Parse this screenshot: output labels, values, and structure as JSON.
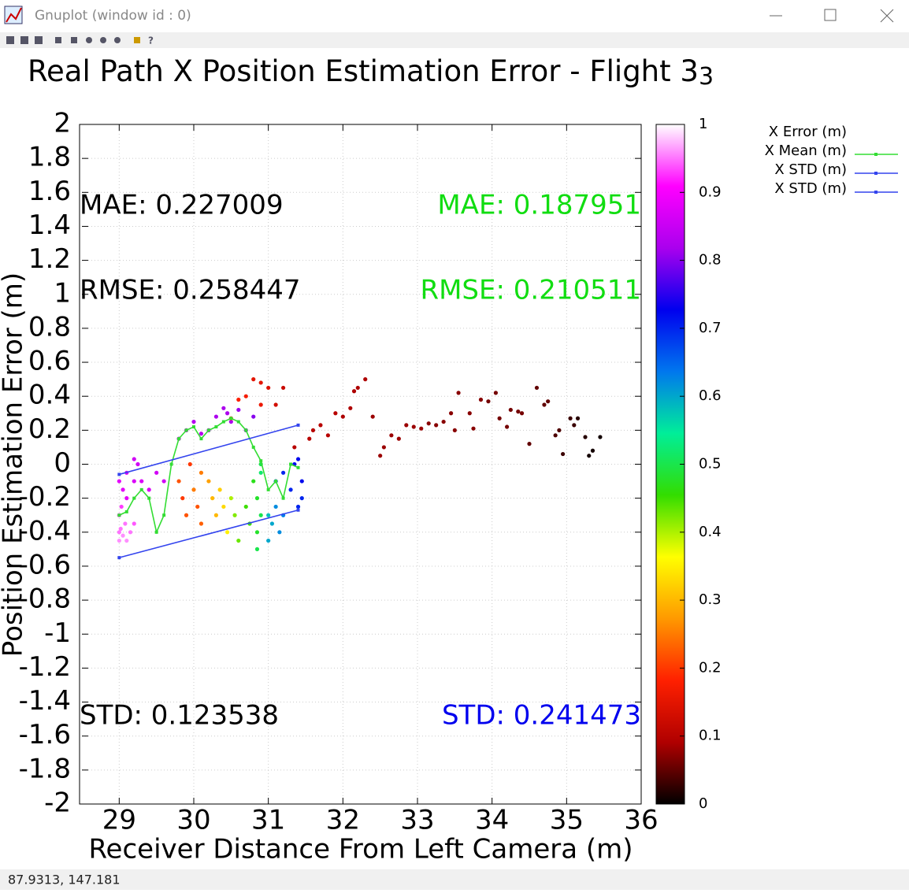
{
  "window": {
    "title": "Gnuplot (window id : 0)",
    "status": "87.9313,  147.181"
  },
  "chart_data": {
    "type": "scatter",
    "title": "Real Path X Position Estimation Error - Flight 3",
    "title_sub": "3",
    "xlabel": "Receiver Distance From Left Camera (m)",
    "ylabel": "Position Estimation Error (m)",
    "xlim": [
      28.5,
      36
    ],
    "xticks": [
      29,
      30,
      31,
      32,
      33,
      34,
      35,
      36
    ],
    "ylim": [
      -2,
      2
    ],
    "yticks": [
      2,
      1.8,
      1.6,
      1.4,
      1.2,
      1,
      0.8,
      0.6,
      0.4,
      0.2,
      0,
      -0.2,
      -0.4,
      -0.6,
      -0.8,
      -1,
      -1.2,
      -1.4,
      -1.6,
      -1.8,
      -2
    ],
    "grid": true,
    "legend": "outside-top-right",
    "cblim": [
      0,
      1
    ],
    "cbticks": [
      0,
      0.1,
      0.2,
      0.3,
      0.4,
      0.5,
      0.6,
      0.7,
      0.8,
      0.9,
      1
    ],
    "palette": [
      "#000000",
      "#b00000",
      "#ff2000",
      "#ff9900",
      "#ffff00",
      "#33dd00",
      "#00ee99",
      "#0077ee",
      "#0000ee",
      "#aa00ee",
      "#ff00ff",
      "#ffffff"
    ],
    "series": [
      {
        "name": "X Error (m)",
        "kind": "points",
        "x": [
          29.0,
          29.0,
          29.02,
          29.05,
          29.08,
          29.0,
          29.03,
          29.1,
          29.15,
          29.2,
          29.3,
          29.0,
          29.05,
          29.1,
          29.1,
          29.2,
          29.25,
          29.3,
          29.4,
          29.5,
          29.6,
          29.2,
          29.8,
          29.9,
          30.0,
          30.1,
          30.2,
          30.3,
          30.4,
          30.45,
          30.5,
          30.6,
          30.7,
          30.8,
          30.5,
          30.6,
          30.7,
          30.8,
          30.9,
          31.0,
          31.1,
          31.2,
          30.9,
          29.8,
          29.85,
          29.9,
          29.95,
          30.0,
          30.05,
          30.1,
          30.1,
          30.2,
          30.25,
          30.3,
          30.35,
          30.4,
          30.45,
          30.5,
          30.55,
          30.6,
          30.7,
          30.75,
          30.8,
          30.85,
          30.85,
          30.85,
          30.9,
          30.9,
          30.9,
          31.0,
          31.0,
          31.05,
          31.1,
          31.15,
          31.2,
          31.1,
          31.2,
          31.3,
          31.35,
          31.4,
          31.45,
          31.4,
          31.45,
          31.35,
          31.55,
          31.6,
          31.7,
          31.8,
          31.9,
          32.0,
          32.1,
          32.15,
          32.2,
          32.3,
          32.4,
          32.5,
          32.55,
          32.65,
          32.75,
          32.85,
          32.95,
          33.05,
          33.15,
          33.25,
          33.35,
          33.45,
          33.5,
          33.55,
          33.7,
          33.75,
          33.85,
          33.95,
          34.05,
          34.1,
          34.2,
          34.25,
          34.35,
          34.4,
          34.5,
          34.6,
          34.7,
          34.75,
          34.85,
          34.9,
          34.95,
          35.05,
          35.1,
          35.15,
          35.25,
          35.3,
          35.35,
          35.45
        ],
        "values": [
          -0.4,
          -0.45,
          -0.38,
          -0.42,
          -0.35,
          -0.3,
          -0.25,
          -0.45,
          -0.4,
          -0.35,
          -0.45,
          -0.1,
          -0.15,
          -0.05,
          -0.2,
          -0.1,
          0.0,
          -0.1,
          -0.15,
          -0.05,
          -0.1,
          0.03,
          0.15,
          0.2,
          0.25,
          0.18,
          0.2,
          0.28,
          0.33,
          0.3,
          0.25,
          0.32,
          0.2,
          0.28,
          0.27,
          0.38,
          0.4,
          0.5,
          0.48,
          0.45,
          0.35,
          0.45,
          0.35,
          -0.1,
          -0.2,
          -0.3,
          0.0,
          -0.15,
          -0.25,
          -0.05,
          -0.35,
          -0.1,
          -0.2,
          -0.3,
          -0.15,
          -0.25,
          -0.4,
          -0.2,
          -0.3,
          -0.45,
          -0.25,
          -0.35,
          -0.1,
          -0.2,
          -0.4,
          -0.5,
          -0.3,
          0.0,
          -0.05,
          -0.3,
          -0.45,
          -0.35,
          -0.25,
          -0.4,
          -0.3,
          -0.1,
          -0.05,
          -0.15,
          0.0,
          -0.25,
          -0.1,
          0.03,
          -0.2,
          0.1,
          0.15,
          0.2,
          0.23,
          0.17,
          0.3,
          0.28,
          0.33,
          0.43,
          0.45,
          0.5,
          0.28,
          0.05,
          0.1,
          0.17,
          0.15,
          0.23,
          0.22,
          0.21,
          0.24,
          0.23,
          0.25,
          0.3,
          0.2,
          0.42,
          0.3,
          0.21,
          0.38,
          0.37,
          0.42,
          0.27,
          0.22,
          0.32,
          0.31,
          0.3,
          0.12,
          0.45,
          0.35,
          0.37,
          0.17,
          0.2,
          0.06,
          0.27,
          0.23,
          0.27,
          0.16,
          0.05,
          0.08,
          0.16
        ],
        "z": [
          0.95,
          0.96,
          0.95,
          0.96,
          0.95,
          0.93,
          0.93,
          0.96,
          0.95,
          0.94,
          1,
          0.88,
          0.88,
          0.87,
          0.88,
          0.87,
          0.86,
          0.87,
          0.87,
          0.86,
          0.86,
          0.86,
          0.84,
          0.84,
          0.83,
          0.83,
          0.83,
          0.82,
          0.82,
          0.82,
          0.82,
          0.81,
          0.81,
          0.8,
          0.2,
          0.18,
          0.17,
          0.15,
          0.15,
          0.14,
          0.13,
          0.12,
          0.16,
          0.22,
          0.2,
          0.22,
          0.2,
          0.25,
          0.22,
          0.25,
          0.23,
          0.28,
          0.3,
          0.3,
          0.32,
          0.33,
          0.35,
          0.4,
          0.42,
          0.43,
          0.45,
          0.45,
          0.47,
          0.48,
          0.48,
          0.5,
          0.5,
          0.5,
          0.52,
          0.58,
          0.6,
          0.6,
          0.62,
          0.62,
          0.63,
          0.68,
          0.7,
          0.7,
          0.72,
          0.7,
          0.72,
          0.72,
          0.7,
          0.1,
          0.1,
          0.1,
          0.1,
          0.1,
          0.1,
          0.09,
          0.09,
          0.09,
          0.09,
          0.09,
          0.08,
          0.08,
          0.08,
          0.08,
          0.08,
          0.08,
          0.08,
          0.08,
          0.07,
          0.07,
          0.07,
          0.07,
          0.07,
          0.07,
          0.07,
          0.07,
          0.07,
          0.06,
          0.06,
          0.06,
          0.06,
          0.06,
          0.06,
          0.06,
          0.05,
          0.05,
          0.05,
          0.05,
          0.04,
          0.04,
          0.03,
          0.03,
          0.03,
          0.02,
          0.02,
          0.01,
          0.01,
          0.01
        ]
      },
      {
        "name": "X Mean (m)",
        "kind": "linespoints",
        "color": "#33dd33",
        "x": [
          29.0,
          29.1,
          29.2,
          29.3,
          29.4,
          29.5,
          29.6,
          29.7,
          29.8,
          29.9,
          30.0,
          30.1,
          30.2,
          30.3,
          30.4,
          30.5,
          30.6,
          30.7,
          30.8,
          30.9,
          31.0,
          31.1,
          31.2,
          31.3,
          31.4
        ],
        "values": [
          -0.3,
          -0.28,
          -0.2,
          -0.15,
          -0.2,
          -0.4,
          -0.3,
          0.0,
          0.15,
          0.2,
          0.22,
          0.15,
          0.2,
          0.22,
          0.25,
          0.27,
          0.25,
          0.2,
          0.1,
          0.02,
          -0.15,
          -0.1,
          -0.2,
          0.0,
          -0.02
        ]
      },
      {
        "name": "X STD (m)",
        "kind": "linespoints",
        "color": "#3344ee",
        "x": [
          29.0,
          31.4
        ],
        "values": [
          -0.06,
          0.23
        ]
      },
      {
        "name": "X STD (m)",
        "kind": "linespoints",
        "color": "#3344ee",
        "x": [
          29.0,
          31.4
        ],
        "values": [
          -0.55,
          -0.27
        ]
      }
    ],
    "annotations": [
      {
        "text": "MAE: 0.227009",
        "color": "#000000"
      },
      {
        "text": "RMSE: 0.258447",
        "color": "#000000"
      },
      {
        "text": "STD: 0.123538",
        "color": "#000000"
      },
      {
        "text": "MAE: 0.187951",
        "color": "#11dd11"
      },
      {
        "text": "RMSE: 0.210511",
        "color": "#11dd11"
      },
      {
        "text": "STD: 0.241473",
        "color": "#0000ee"
      }
    ]
  }
}
